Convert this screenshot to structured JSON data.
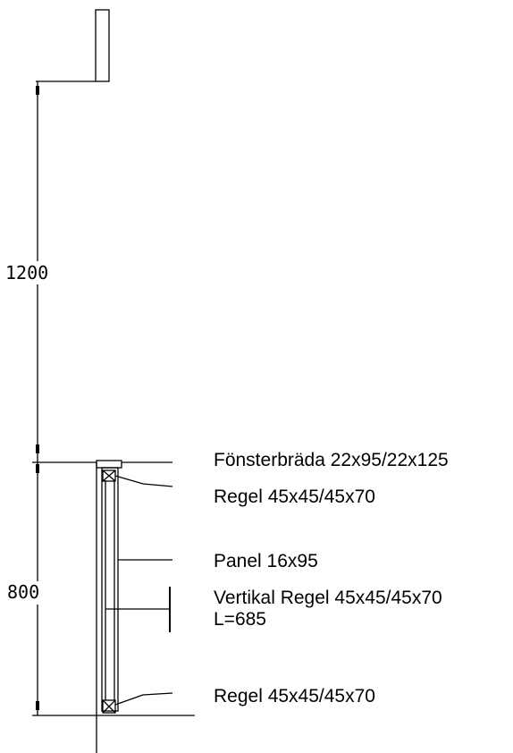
{
  "dimensions": {
    "upper": "1200",
    "lower": "800"
  },
  "labels": {
    "window_sill": "Fönsterbräda 22x95/22x125",
    "rail_top": "Regel 45x45/45x70",
    "panel": "Panel 16x95",
    "vertical_rail_line1": "Vertikal Regel 45x45/45x70",
    "vertical_rail_line2": "L=685",
    "rail_bottom": "Regel 45x45/45x70"
  }
}
